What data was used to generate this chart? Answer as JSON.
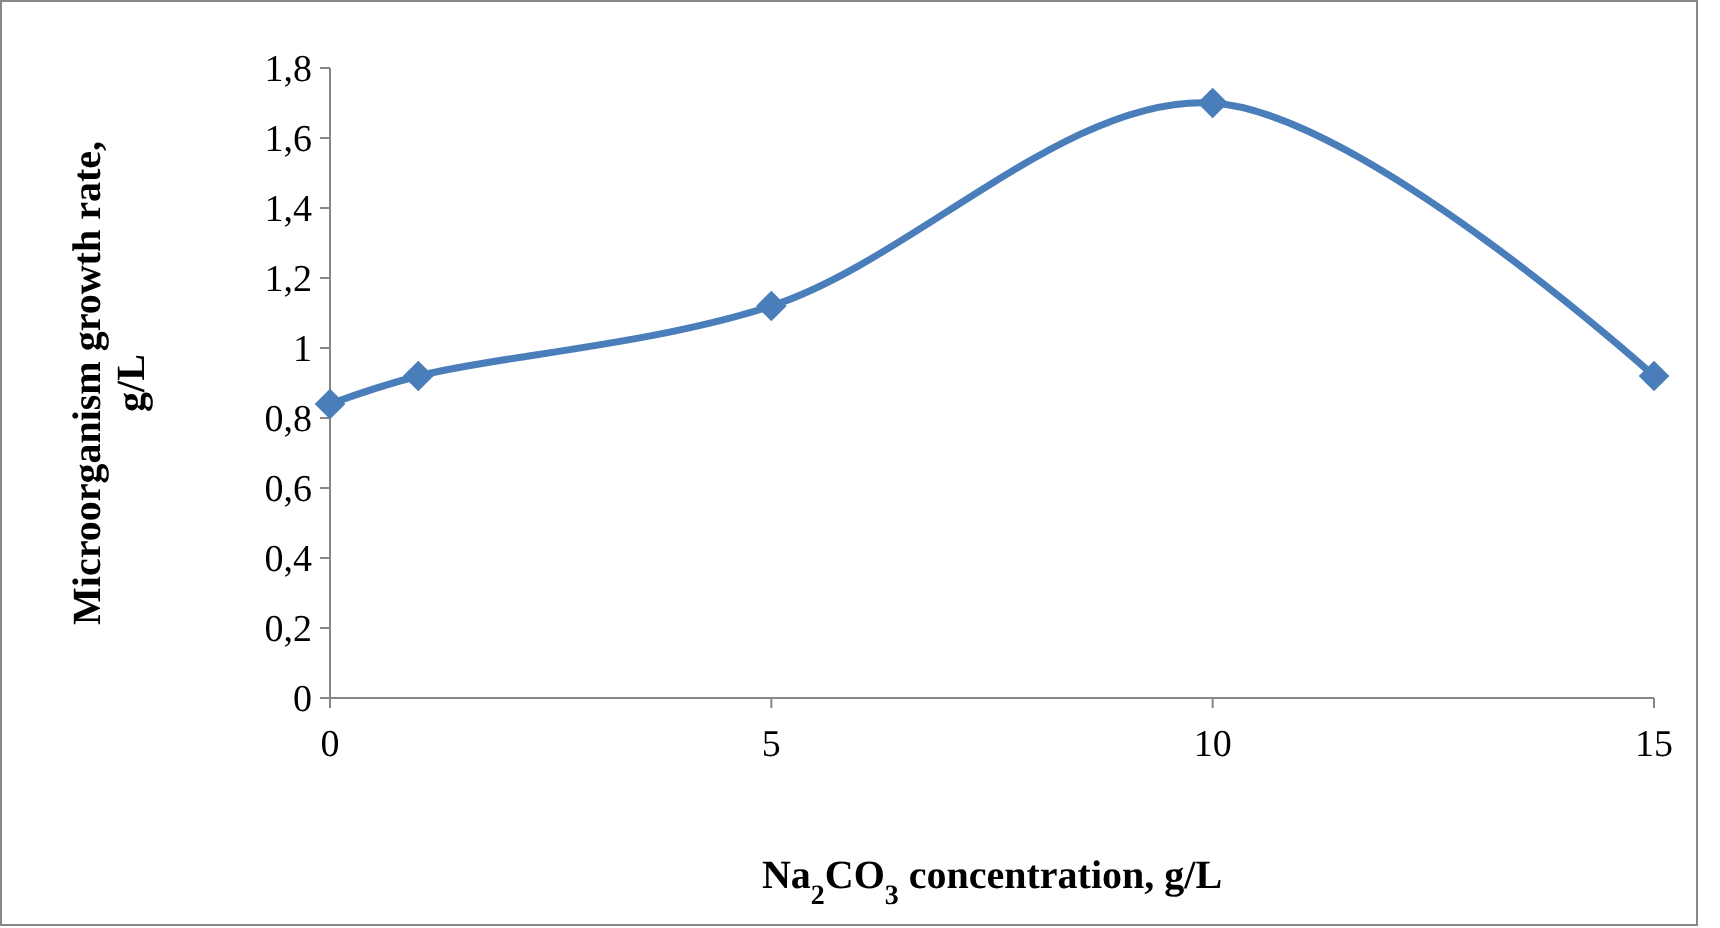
{
  "chart_data": {
    "type": "line",
    "xlabel": "Na$_{2}$CO$_{3}$ concentration, g/L",
    "ylabel": "Microorganism growth rate, g/L",
    "x": [
      0,
      1,
      5,
      10,
      15
    ],
    "series": [
      {
        "color": "#4a7ebb",
        "values": [
          0.84,
          0.92,
          1.12,
          1.7,
          0.92
        ]
      }
    ],
    "xlim": [
      0,
      15
    ],
    "xticks": [
      0,
      5,
      10,
      15
    ],
    "ylim": [
      0,
      1.8
    ],
    "yticks": [
      0,
      {
        "value": 0.2,
        "label": "0,2"
      },
      {
        "value": 0.4,
        "label": "0,4"
      },
      {
        "value": 0.6,
        "label": "0,6"
      },
      {
        "value": 0.8,
        "label": "0,8"
      },
      1,
      {
        "value": 1.2,
        "label": "1,2"
      },
      {
        "value": 1.4,
        "label": "1,4"
      },
      {
        "value": 1.6,
        "label": "1,6"
      },
      {
        "value": 1.8,
        "label": "1,8"
      }
    ],
    "grid": false,
    "marker": "diamond",
    "line_style": "solid"
  }
}
